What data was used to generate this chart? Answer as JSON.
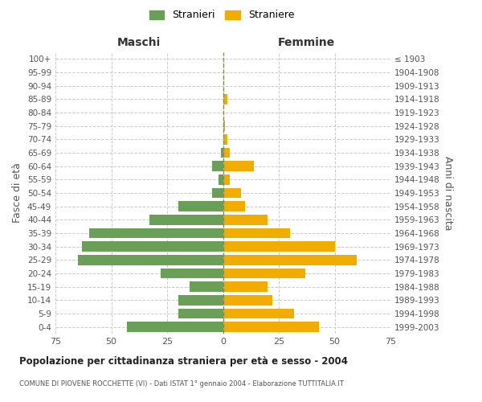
{
  "age_groups": [
    "0-4",
    "5-9",
    "10-14",
    "15-19",
    "20-24",
    "25-29",
    "30-34",
    "35-39",
    "40-44",
    "45-49",
    "50-54",
    "55-59",
    "60-64",
    "65-69",
    "70-74",
    "75-79",
    "80-84",
    "85-89",
    "90-94",
    "95-99",
    "100+"
  ],
  "birth_years": [
    "1999-2003",
    "1994-1998",
    "1989-1993",
    "1984-1988",
    "1979-1983",
    "1974-1978",
    "1969-1973",
    "1964-1968",
    "1959-1963",
    "1954-1958",
    "1949-1953",
    "1944-1948",
    "1939-1943",
    "1934-1938",
    "1929-1933",
    "1924-1928",
    "1919-1923",
    "1914-1918",
    "1909-1913",
    "1904-1908",
    "≤ 1903"
  ],
  "maschi": [
    43,
    20,
    20,
    15,
    28,
    65,
    63,
    60,
    33,
    20,
    5,
    2,
    5,
    1,
    0,
    0,
    0,
    0,
    0,
    0,
    0
  ],
  "femmine": [
    43,
    32,
    22,
    20,
    37,
    60,
    50,
    30,
    20,
    10,
    8,
    3,
    14,
    3,
    2,
    1,
    0,
    2,
    0,
    0,
    0
  ],
  "maschi_color": "#6a9f58",
  "femmine_color": "#f0ad00",
  "background_color": "#ffffff",
  "grid_color": "#cccccc",
  "title": "Popolazione per cittadinanza straniera per età e sesso - 2004",
  "subtitle": "COMUNE DI PIOVENE ROCCHETTE (VI) - Dati ISTAT 1° gennaio 2004 - Elaborazione TUTTITALIA.IT",
  "xlabel_left": "Maschi",
  "xlabel_right": "Femmine",
  "ylabel_left": "Fasce di età",
  "ylabel_right": "Anni di nascita",
  "legend_stranieri": "Stranieri",
  "legend_straniere": "Straniere",
  "xlim": 75
}
